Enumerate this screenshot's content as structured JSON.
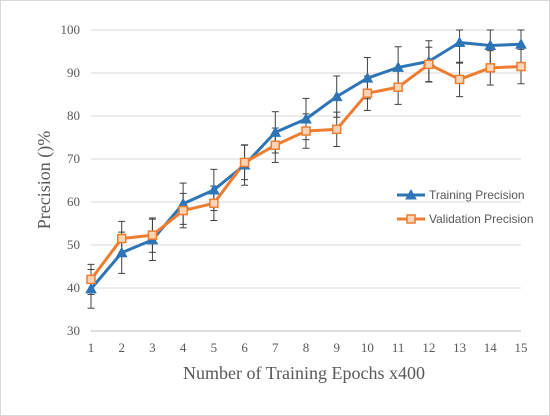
{
  "chart_data": {
    "type": "line",
    "title": "",
    "xlabel": "Number of Training Epochs x400",
    "ylabel": "Precision ()%",
    "ylim": [
      30,
      100
    ],
    "yticks": [
      30,
      40,
      50,
      60,
      70,
      80,
      90,
      100
    ],
    "x": [
      1,
      2,
      3,
      4,
      5,
      6,
      7,
      8,
      9,
      10,
      11,
      12,
      13,
      14,
      15
    ],
    "grid": true,
    "error_bars": true,
    "legend_position": "right",
    "series": [
      {
        "name": "Training Precision",
        "color": "#2e75b6",
        "marker": "triangle",
        "values": [
          39.8,
          48.2,
          51.2,
          59.6,
          62.8,
          68.6,
          76.2,
          79.3,
          84.5,
          88.8,
          91.3,
          92.7,
          97.1,
          96.4,
          96.7
        ],
        "errors": [
          4.5,
          4.8,
          4.8,
          4.8,
          4.8,
          4.7,
          4.8,
          4.8,
          4.8,
          4.8,
          4.8,
          4.8,
          4.8,
          4.8,
          4.8
        ]
      },
      {
        "name": "Validation Precision",
        "color": "#ed7d31",
        "marker": "square",
        "values": [
          42.0,
          51.5,
          52.3,
          58.0,
          59.7,
          69.2,
          73.2,
          76.5,
          76.9,
          85.3,
          86.7,
          92.0,
          88.5,
          91.2,
          91.5
        ],
        "errors": [
          3.5,
          4.0,
          4.0,
          4.0,
          4.0,
          4.0,
          4.0,
          4.0,
          4.0,
          4.0,
          4.0,
          4.0,
          4.0,
          4.0,
          4.0
        ]
      }
    ]
  }
}
